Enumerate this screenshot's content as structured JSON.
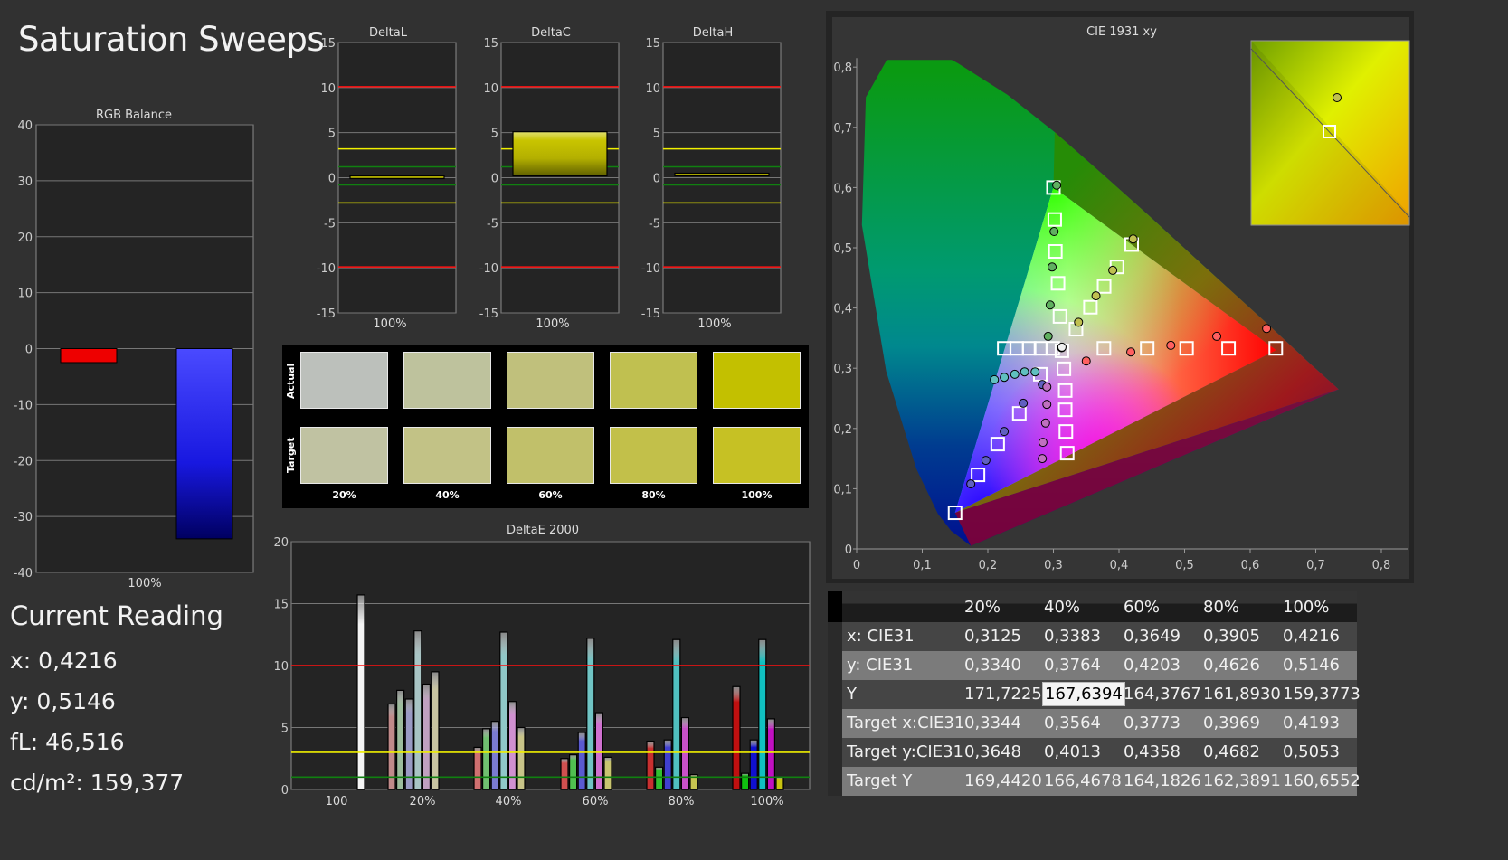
{
  "page_title": "Saturation Sweeps",
  "current_reading": {
    "title": "Current Reading",
    "lines": [
      "x: 0,4216",
      "y: 0,5146",
      "fL: 46,516",
      "cd/m²: 159,377"
    ]
  },
  "swatches": {
    "row_labels": [
      "Actual",
      "Target"
    ],
    "columns": [
      "20%",
      "40%",
      "60%",
      "80%",
      "100%"
    ],
    "actual_colors": [
      "#bcc0bb",
      "#bec29d",
      "#c0c07c",
      "#c0c050",
      "#c3c000"
    ],
    "target_colors": [
      "#c0c2a2",
      "#c2c286",
      "#c1c06a",
      "#c2c04a",
      "#c6c124"
    ]
  },
  "chart_data": [
    {
      "id": "rgb-balance",
      "type": "bar",
      "title": "RGB Balance",
      "categories": [
        "100%"
      ],
      "ylim": [
        -40,
        40
      ],
      "yticks": [
        40,
        30,
        20,
        10,
        0,
        -10,
        -20,
        -30,
        -40
      ],
      "series": [
        {
          "color": "#ff0000",
          "values": [
            -2.5
          ]
        },
        {
          "color": "#2020ff",
          "values": [
            -34
          ]
        }
      ]
    },
    {
      "id": "delta-l",
      "type": "bar",
      "title": "DeltaL",
      "categories": [
        "100%"
      ],
      "ylim": [
        -15,
        15
      ],
      "yticks": [
        15,
        10,
        5,
        0,
        -5,
        -10,
        -15
      ],
      "range": [
        0,
        0.2
      ],
      "values": [
        0.2
      ]
    },
    {
      "id": "delta-c",
      "type": "bar",
      "title": "DeltaC",
      "categories": [
        "100%"
      ],
      "ylim": [
        -15,
        15
      ],
      "yticks": [
        15,
        10,
        5,
        0,
        -5,
        -10,
        -15
      ],
      "range": [
        0.2,
        5.1
      ],
      "values": [
        5.0
      ]
    },
    {
      "id": "delta-h",
      "type": "bar",
      "title": "DeltaH",
      "categories": [
        "100%"
      ],
      "ylim": [
        -15,
        15
      ],
      "yticks": [
        15,
        10,
        5,
        0,
        -5,
        -10,
        -15
      ],
      "range": [
        0.2,
        0.5
      ],
      "values": [
        0.3
      ]
    },
    {
      "id": "deltae-2000",
      "type": "bar",
      "title": "DeltaE 2000",
      "categories": [
        "100",
        "20%",
        "40%",
        "60%",
        "80%",
        "100%"
      ],
      "ylim": [
        0,
        20
      ],
      "yticks": [
        20,
        15,
        10,
        5,
        0
      ],
      "thresholds": [
        {
          "value": 10,
          "color": "#ff1010"
        },
        {
          "value": 3,
          "color": "#f0f000"
        },
        {
          "value": 1,
          "color": "#108010"
        }
      ],
      "groups": [
        {
          "values": [
            15.7
          ],
          "colors": [
            "#f4f4f4"
          ]
        },
        {
          "values": [
            6.9,
            8.0,
            7.3,
            12.8,
            8.5,
            9.5
          ],
          "colors": [
            "#c08a8a",
            "#9cbc9c",
            "#9a9ac4",
            "#a8c4c4",
            "#c0a0c0",
            "#c8c4a0"
          ]
        },
        {
          "values": [
            3.4,
            4.9,
            5.5,
            12.7,
            7.1,
            5.0
          ],
          "colors": [
            "#d07070",
            "#70c070",
            "#7a7ad0",
            "#90c8c8",
            "#d090d0",
            "#c8c488"
          ]
        },
        {
          "values": [
            2.5,
            2.8,
            4.6,
            12.2,
            6.2,
            2.6
          ],
          "colors": [
            "#d05050",
            "#50c050",
            "#5a5ad0",
            "#70c4c4",
            "#d070d0",
            "#c8c470"
          ]
        },
        {
          "values": [
            3.9,
            1.8,
            4.0,
            12.1,
            5.8,
            1.2
          ],
          "colors": [
            "#c83030",
            "#30c030",
            "#4040d0",
            "#50c0c0",
            "#c850c8",
            "#c8c450"
          ]
        },
        {
          "values": [
            8.3,
            1.3,
            4.0,
            12.1,
            5.7,
            1.0
          ],
          "colors": [
            "#c01010",
            "#10c010",
            "#1010d0",
            "#10c0c0",
            "#c010c0",
            "#c8c410"
          ]
        }
      ]
    },
    {
      "id": "cie-1931",
      "type": "scatter",
      "title": "CIE 1931 xy",
      "xlim": [
        0,
        0.8
      ],
      "ylim": [
        0,
        0.8
      ],
      "xticks": [
        "0",
        "0,1",
        "0,2",
        "0,3",
        "0,4",
        "0,5",
        "0,6",
        "0,7",
        "0,8"
      ],
      "yticks": [
        "0",
        "0,1",
        "0,2",
        "0,3",
        "0,4",
        "0,5",
        "0,6",
        "0,7",
        "0,8"
      ],
      "gamut": [
        [
          0.64,
          0.33
        ],
        [
          0.3,
          0.6
        ],
        [
          0.15,
          0.06
        ]
      ],
      "series": [
        {
          "color": "#ff6060",
          "targets": [
            [
              0.377,
              0.333
            ],
            [
              0.443,
              0.333
            ],
            [
              0.503,
              0.333
            ],
            [
              0.567,
              0.333
            ],
            [
              0.639,
              0.333
            ]
          ],
          "actuals": [
            [
              0.35,
              0.312
            ],
            [
              0.418,
              0.327
            ],
            [
              0.479,
              0.338
            ],
            [
              0.549,
              0.353
            ],
            [
              0.625,
              0.366
            ]
          ]
        },
        {
          "color": "#60b060",
          "targets": [
            [
              0.31,
              0.386
            ],
            [
              0.307,
              0.441
            ],
            [
              0.303,
              0.494
            ],
            [
              0.302,
              0.547
            ],
            [
              0.3,
              0.6
            ]
          ],
          "actuals": [
            [
              0.292,
              0.353
            ],
            [
              0.295,
              0.405
            ],
            [
              0.298,
              0.468
            ],
            [
              0.301,
              0.527
            ],
            [
              0.305,
              0.604
            ]
          ]
        },
        {
          "color": "#6060c0",
          "targets": [
            [
              0.28,
              0.29
            ],
            [
              0.248,
              0.225
            ],
            [
              0.215,
              0.174
            ],
            [
              0.185,
              0.123
            ],
            [
              0.15,
              0.06
            ]
          ],
          "actuals": [
            [
              0.283,
              0.273
            ],
            [
              0.254,
              0.242
            ],
            [
              0.225,
              0.195
            ],
            [
              0.197,
              0.147
            ],
            [
              0.174,
              0.108
            ]
          ]
        },
        {
          "color": "#60c0c0",
          "targets": [
            [
              0.299,
              0.333
            ],
            [
              0.281,
              0.333
            ],
            [
              0.263,
              0.333
            ],
            [
              0.244,
              0.333
            ],
            [
              0.225,
              0.333
            ]
          ],
          "actuals": [
            [
              0.272,
              0.294
            ],
            [
              0.256,
              0.294
            ],
            [
              0.241,
              0.29
            ],
            [
              0.225,
              0.285
            ],
            [
              0.21,
              0.281
            ]
          ]
        },
        {
          "color": "#c070c0",
          "targets": [
            [
              0.316,
              0.299
            ],
            [
              0.318,
              0.263
            ],
            [
              0.318,
              0.231
            ],
            [
              0.319,
              0.195
            ],
            [
              0.321,
              0.159
            ]
          ],
          "actuals": [
            [
              0.29,
              0.269
            ],
            [
              0.29,
              0.24
            ],
            [
              0.288,
              0.209
            ],
            [
              0.284,
              0.177
            ],
            [
              0.283,
              0.15
            ]
          ]
        },
        {
          "color": "#c0c050",
          "targets": [
            [
              0.3344,
              0.3648
            ],
            [
              0.3564,
              0.4013
            ],
            [
              0.3773,
              0.4358
            ],
            [
              0.3969,
              0.4682
            ],
            [
              0.4193,
              0.5053
            ]
          ],
          "actuals": [
            [
              0.3125,
              0.334
            ],
            [
              0.3383,
              0.3764
            ],
            [
              0.3649,
              0.4203
            ],
            [
              0.3905,
              0.4626
            ],
            [
              0.4216,
              0.5146
            ]
          ]
        },
        {
          "color": "#f0f0f0",
          "targets": [
            [
              0.313,
              0.329
            ]
          ],
          "actuals": [
            [
              0.313,
              0.335
            ]
          ]
        }
      ]
    }
  ],
  "table": {
    "columns": [
      "20%",
      "40%",
      "60%",
      "80%",
      "100%"
    ],
    "rows": [
      {
        "label": "x: CIE31",
        "values": [
          "0,3125",
          "0,3383",
          "0,3649",
          "0,3905",
          "0,4216"
        ]
      },
      {
        "label": "y: CIE31",
        "values": [
          "0,3340",
          "0,3764",
          "0,4203",
          "0,4626",
          "0,5146"
        ]
      },
      {
        "label": "Y",
        "values": [
          "171,7225",
          "167,6394",
          "164,3767",
          "161,8930",
          "159,3773"
        ]
      },
      {
        "label": "Target x:CIE31",
        "values": [
          "0,3344",
          "0,3564",
          "0,3773",
          "0,3969",
          "0,4193"
        ]
      },
      {
        "label": "Target y:CIE31",
        "values": [
          "0,3648",
          "0,4013",
          "0,4358",
          "0,4682",
          "0,5053"
        ]
      },
      {
        "label": "Target Y",
        "values": [
          "169,4420",
          "166,4678",
          "164,1826",
          "162,3891",
          "160,6552"
        ]
      }
    ],
    "selected_cell": "167,6394"
  }
}
